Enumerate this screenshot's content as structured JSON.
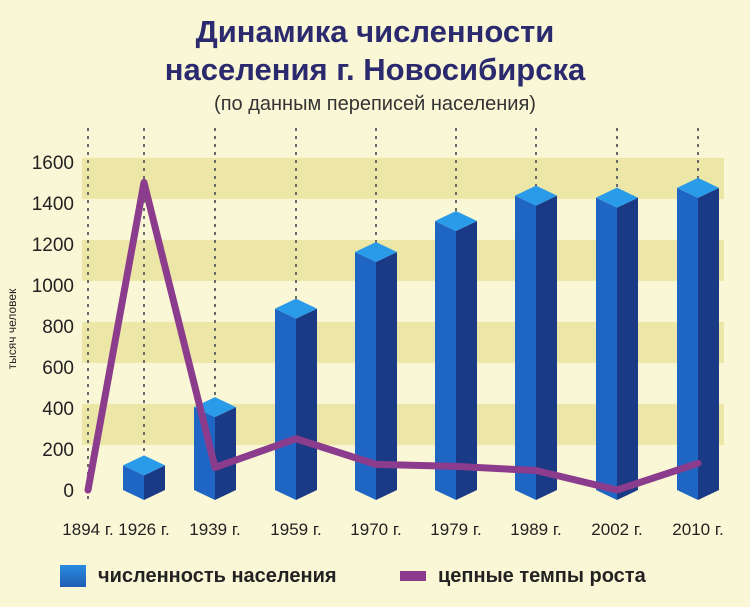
{
  "title_line1": "Динамика численности",
  "title_line2": "населения г. Новосибирска",
  "subtitle": "(по данным переписей населения)",
  "ylabel": "тысяч человек",
  "legend": {
    "population": "численность населения",
    "growth": "цепные темпы роста"
  },
  "colors": {
    "bar_front": "#1f66c4",
    "bar_side": "#1a3a86",
    "bar_top": "#2a9be8",
    "line": "#8c3c8c",
    "band": "#ece7a6",
    "background": "#faf7d6"
  },
  "chart_data": {
    "type": "bar",
    "categories": [
      "1894 г.",
      "1926 г.",
      "1939 г.",
      "1959 г.",
      "1970 г.",
      "1979 г.",
      "1989 г.",
      "2002 г.",
      "2010 г."
    ],
    "series": [
      {
        "values": [
          8,
          120,
          404,
          885,
          1161,
          1312,
          1436,
          1426,
          1474
        ]
      },
      {
        "values": [
          0,
          1500,
          110,
          250,
          125,
          115,
          95,
          0,
          130
        ]
      }
    ],
    "ylim": [
      0,
      1700
    ],
    "yticks": [
      0,
      200,
      400,
      600,
      800,
      1000,
      1200,
      1400,
      1600
    ],
    "grid": "horizontal bands",
    "legend_position": "bottom"
  }
}
